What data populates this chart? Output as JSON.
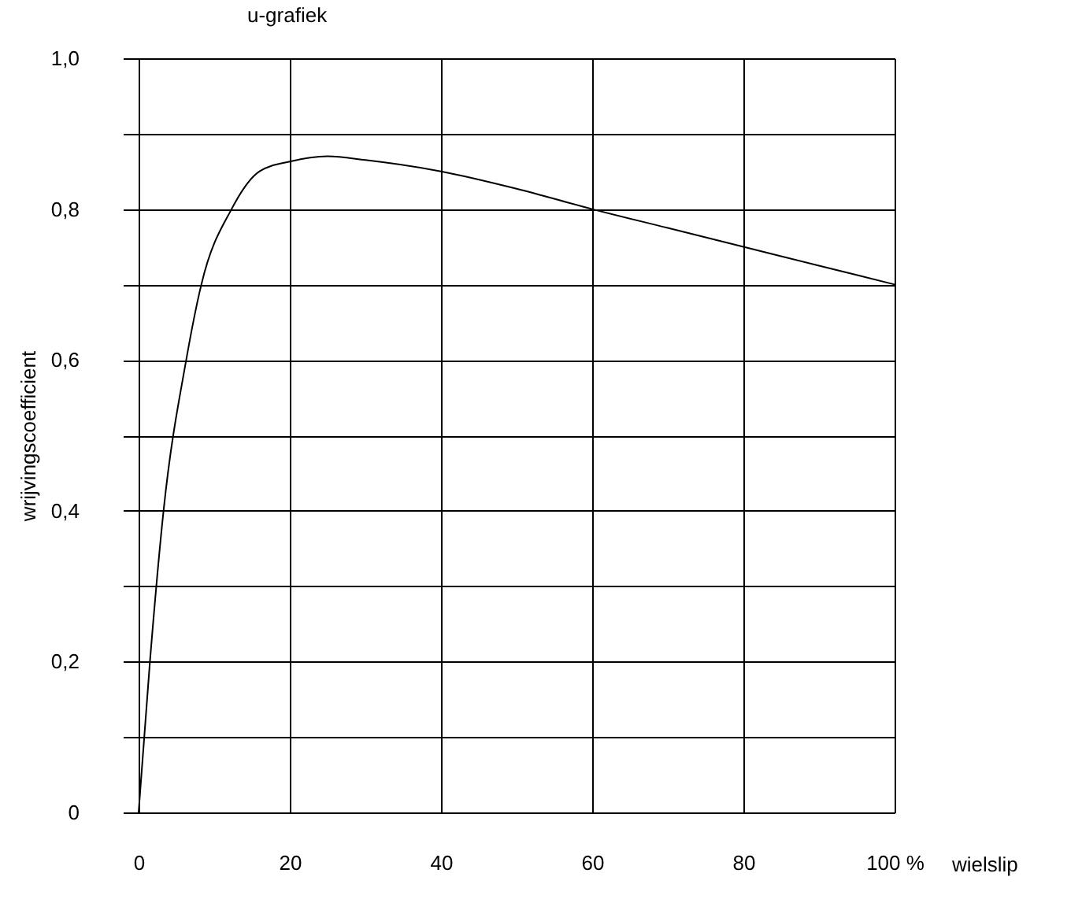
{
  "chart_data": {
    "type": "line",
    "title": "u-grafiek",
    "xlabel": "wielslip",
    "ylabel": "wrijvingscoefficient",
    "x": [
      0,
      1.5,
      3.3,
      6.3,
      8.3,
      12.3,
      16,
      20,
      25,
      30,
      40,
      50,
      60,
      70,
      80,
      90,
      100
    ],
    "series": [
      {
        "color": "#000000",
        "values": [
          0,
          0.2,
          0.4,
          0.6,
          0.7,
          0.8,
          0.85,
          0.863,
          0.87,
          0.865,
          0.85,
          0.827,
          0.8,
          0.775,
          0.75,
          0.725,
          0.7
        ]
      }
    ],
    "xlim": [
      0,
      100
    ],
    "xticks": [
      0,
      20,
      40,
      60,
      80,
      {
        "value": 100,
        "label": "100 %"
      }
    ],
    "ylim": [
      0,
      1
    ],
    "yticks": [
      0,
      {
        "value": 0.1,
        "label": null
      },
      {
        "value": 0.2,
        "label": "0,2"
      },
      {
        "value": 0.3,
        "label": null
      },
      {
        "value": 0.4,
        "label": "0,4"
      },
      {
        "value": 0.5,
        "label": null
      },
      {
        "value": 0.6,
        "label": "0,6"
      },
      {
        "value": 0.7,
        "label": null
      },
      {
        "value": 0.8,
        "label": "0,8"
      },
      {
        "value": 0.9,
        "label": null
      },
      {
        "value": 1.0,
        "label": "1,0"
      }
    ],
    "grid": true,
    "marker": "none",
    "line_style": "solid"
  }
}
